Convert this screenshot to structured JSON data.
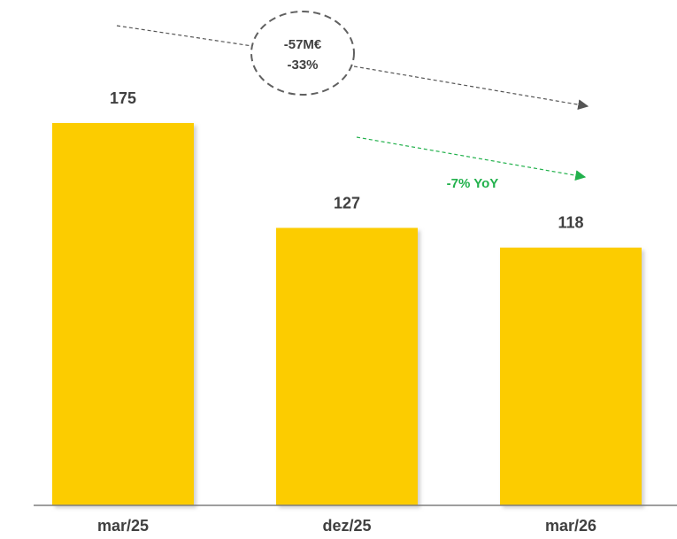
{
  "chart_data": {
    "type": "bar",
    "categories": [
      "mar/25",
      "dez/25",
      "mar/26"
    ],
    "values": [
      175,
      127,
      118
    ],
    "title": "",
    "xlabel": "",
    "ylabel": "",
    "ylim": [
      0,
      175
    ],
    "grid": false,
    "legend": "none",
    "colors": {
      "bar": "#fccc00",
      "bar_shadow": "#c9c9c9",
      "label_text": "#404040",
      "axis": "#7f7f7f",
      "total_arrow": "#555555",
      "yoy_arrow": "#22b14c"
    },
    "annotations": {
      "total_change": {
        "lines": [
          "-57M€",
          "-33%"
        ],
        "from": "mar/25",
        "to": "mar/26"
      },
      "yoy_change": {
        "text": "-7% YoY",
        "from": "dez/25",
        "to": "mar/26"
      }
    }
  }
}
